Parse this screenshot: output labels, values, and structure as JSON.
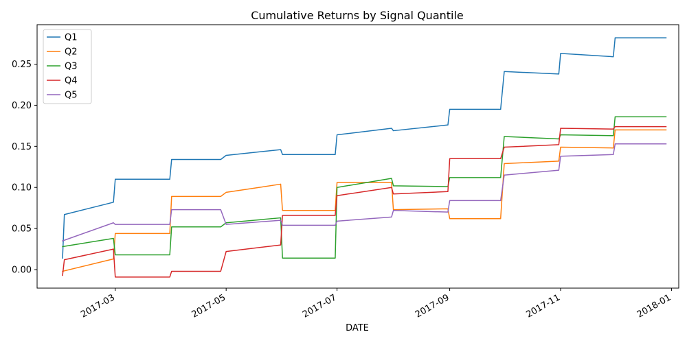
{
  "chart_data": {
    "type": "line",
    "title": "Cumulative Returns by Signal Quantile",
    "xlabel": "DATE",
    "ylabel": "",
    "x_type": "date",
    "xlim": [
      "2017-01-17",
      "2018-01-05"
    ],
    "ylim": [
      -0.0225,
      0.298
    ],
    "x_ticks": [
      "2017-03-01",
      "2017-05-01",
      "2017-07-01",
      "2017-09-01",
      "2017-11-01",
      "2018-01-01"
    ],
    "x_tick_labels": [
      "2017-03",
      "2017-05",
      "2017-07",
      "2017-09",
      "2017-11",
      "2018-01"
    ],
    "y_ticks": [
      0.0,
      0.05,
      0.1,
      0.15,
      0.2,
      0.25
    ],
    "y_tick_labels": [
      "0.00",
      "0.05",
      "0.10",
      "0.15",
      "0.20",
      "0.25"
    ],
    "grid": false,
    "legend_position": "top-left",
    "series": [
      {
        "name": "Q1",
        "color": "#1f77b4",
        "points": [
          [
            "2017-01-31",
            0.014
          ],
          [
            "2017-02-01",
            0.067
          ],
          [
            "2017-02-28",
            0.082
          ],
          [
            "2017-03-01",
            0.11
          ],
          [
            "2017-03-31",
            0.11
          ],
          [
            "2017-04-01",
            0.134
          ],
          [
            "2017-04-28",
            0.134
          ],
          [
            "2017-05-01",
            0.139
          ],
          [
            "2017-05-31",
            0.146
          ],
          [
            "2017-06-01",
            0.14
          ],
          [
            "2017-06-30",
            0.14
          ],
          [
            "2017-07-01",
            0.164
          ],
          [
            "2017-07-31",
            0.172
          ],
          [
            "2017-08-01",
            0.169
          ],
          [
            "2017-08-31",
            0.176
          ],
          [
            "2017-09-01",
            0.195
          ],
          [
            "2017-09-29",
            0.195
          ],
          [
            "2017-10-01",
            0.241
          ],
          [
            "2017-10-31",
            0.238
          ],
          [
            "2017-11-01",
            0.263
          ],
          [
            "2017-11-30",
            0.259
          ],
          [
            "2017-12-01",
            0.282
          ],
          [
            "2017-12-29",
            0.282
          ]
        ]
      },
      {
        "name": "Q2",
        "color": "#ff7f0e",
        "points": [
          [
            "2017-01-31",
            -0.002
          ],
          [
            "2017-02-28",
            0.013
          ],
          [
            "2017-03-01",
            0.044
          ],
          [
            "2017-03-31",
            0.044
          ],
          [
            "2017-04-01",
            0.089
          ],
          [
            "2017-04-28",
            0.089
          ],
          [
            "2017-05-01",
            0.094
          ],
          [
            "2017-05-31",
            0.104
          ],
          [
            "2017-06-01",
            0.072
          ],
          [
            "2017-06-30",
            0.072
          ],
          [
            "2017-07-01",
            0.106
          ],
          [
            "2017-07-31",
            0.106
          ],
          [
            "2017-08-01",
            0.073
          ],
          [
            "2017-08-31",
            0.074
          ],
          [
            "2017-09-01",
            0.062
          ],
          [
            "2017-09-29",
            0.062
          ],
          [
            "2017-10-01",
            0.129
          ],
          [
            "2017-10-31",
            0.132
          ],
          [
            "2017-11-01",
            0.149
          ],
          [
            "2017-11-30",
            0.148
          ],
          [
            "2017-12-01",
            0.17
          ],
          [
            "2017-12-29",
            0.17
          ]
        ]
      },
      {
        "name": "Q3",
        "color": "#2ca02c",
        "points": [
          [
            "2017-01-31",
            0.028
          ],
          [
            "2017-02-28",
            0.038
          ],
          [
            "2017-03-01",
            0.018
          ],
          [
            "2017-03-31",
            0.018
          ],
          [
            "2017-04-01",
            0.052
          ],
          [
            "2017-04-28",
            0.052
          ],
          [
            "2017-05-01",
            0.057
          ],
          [
            "2017-05-31",
            0.063
          ],
          [
            "2017-06-01",
            0.014
          ],
          [
            "2017-06-30",
            0.014
          ],
          [
            "2017-07-01",
            0.1
          ],
          [
            "2017-07-31",
            0.111
          ],
          [
            "2017-08-01",
            0.102
          ],
          [
            "2017-08-31",
            0.101
          ],
          [
            "2017-09-01",
            0.112
          ],
          [
            "2017-09-29",
            0.112
          ],
          [
            "2017-10-01",
            0.162
          ],
          [
            "2017-10-31",
            0.159
          ],
          [
            "2017-11-01",
            0.164
          ],
          [
            "2017-11-30",
            0.163
          ],
          [
            "2017-12-01",
            0.186
          ],
          [
            "2017-12-29",
            0.186
          ]
        ]
      },
      {
        "name": "Q4",
        "color": "#d62728",
        "points": [
          [
            "2017-01-31",
            -0.007
          ],
          [
            "2017-02-01",
            0.012
          ],
          [
            "2017-02-28",
            0.025
          ],
          [
            "2017-03-01",
            -0.009
          ],
          [
            "2017-03-31",
            -0.009
          ],
          [
            "2017-04-01",
            -0.002
          ],
          [
            "2017-04-28",
            -0.002
          ],
          [
            "2017-05-01",
            0.022
          ],
          [
            "2017-05-31",
            0.03
          ],
          [
            "2017-06-01",
            0.066
          ],
          [
            "2017-06-30",
            0.066
          ],
          [
            "2017-07-01",
            0.09
          ],
          [
            "2017-07-31",
            0.1
          ],
          [
            "2017-08-01",
            0.092
          ],
          [
            "2017-08-31",
            0.095
          ],
          [
            "2017-09-01",
            0.135
          ],
          [
            "2017-09-29",
            0.135
          ],
          [
            "2017-10-01",
            0.149
          ],
          [
            "2017-10-31",
            0.152
          ],
          [
            "2017-11-01",
            0.172
          ],
          [
            "2017-11-30",
            0.171
          ],
          [
            "2017-12-01",
            0.174
          ],
          [
            "2017-12-29",
            0.174
          ]
        ]
      },
      {
        "name": "Q5",
        "color": "#9467bd",
        "points": [
          [
            "2017-01-31",
            0.035
          ],
          [
            "2017-02-28",
            0.057
          ],
          [
            "2017-03-01",
            0.055
          ],
          [
            "2017-03-31",
            0.055
          ],
          [
            "2017-04-01",
            0.073
          ],
          [
            "2017-04-28",
            0.073
          ],
          [
            "2017-05-01",
            0.055
          ],
          [
            "2017-05-31",
            0.06
          ],
          [
            "2017-06-01",
            0.054
          ],
          [
            "2017-06-30",
            0.054
          ],
          [
            "2017-07-01",
            0.059
          ],
          [
            "2017-07-31",
            0.064
          ],
          [
            "2017-08-01",
            0.072
          ],
          [
            "2017-08-31",
            0.07
          ],
          [
            "2017-09-01",
            0.084
          ],
          [
            "2017-09-29",
            0.084
          ],
          [
            "2017-10-01",
            0.115
          ],
          [
            "2017-10-31",
            0.121
          ],
          [
            "2017-11-01",
            0.138
          ],
          [
            "2017-11-30",
            0.14
          ],
          [
            "2017-12-01",
            0.153
          ],
          [
            "2017-12-29",
            0.153
          ]
        ]
      }
    ]
  }
}
